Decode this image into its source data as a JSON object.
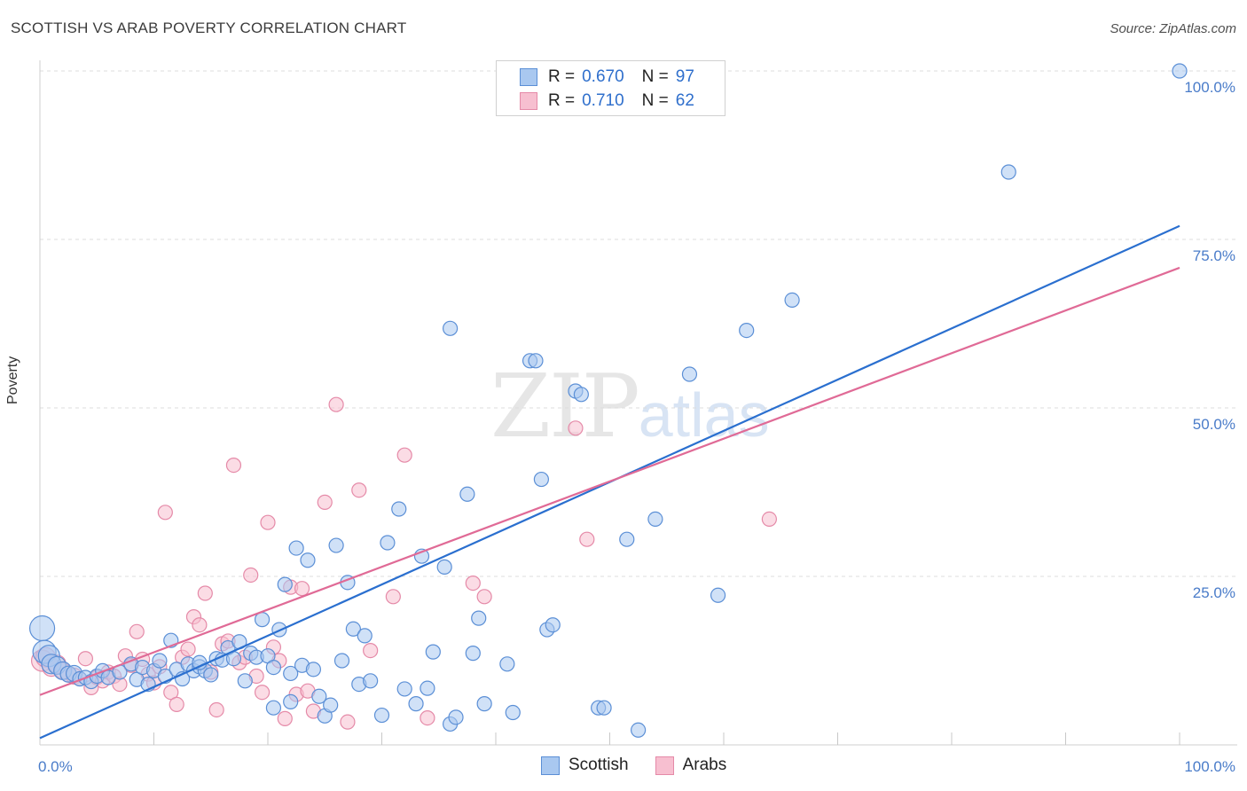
{
  "title": "SCOTTISH VS ARAB POVERTY CORRELATION CHART",
  "source": "Source: ZipAtlas.com",
  "watermark": {
    "zip": "ZIP",
    "atlas": "atlas"
  },
  "legend": {
    "rows": [
      {
        "r_label": "R =",
        "r_value": "0.670",
        "n_label": "N =",
        "n_value": "97"
      },
      {
        "r_label": "R =",
        "r_value": "0.710",
        "n_label": "N =",
        "n_value": "62"
      }
    ]
  },
  "colors": {
    "scottish_fill": "#a9c8f0",
    "scottish_stroke": "#5b8fd6",
    "scottish_line": "#2a6fcf",
    "arabs_fill": "#f7bfd0",
    "arabs_stroke": "#e58aa8",
    "arabs_line": "#e06a96"
  },
  "chart_data": {
    "type": "scatter",
    "title": "SCOTTISH VS ARAB POVERTY CORRELATION CHART",
    "xlabel": "",
    "ylabel": "Poverty",
    "xlim": [
      0,
      100
    ],
    "ylim": [
      0,
      100
    ],
    "x_tick_labels": [
      "0.0%",
      "100.0%"
    ],
    "y_tick_labels": [
      "25.0%",
      "50.0%",
      "75.0%",
      "100.0%"
    ],
    "y_ticks": [
      25,
      50,
      75,
      100
    ],
    "x_minor_ticks": [
      10,
      20,
      30,
      40,
      50,
      60,
      70,
      80,
      90,
      100
    ],
    "series": [
      {
        "name": "Scottish",
        "r": 0.67,
        "n": 97,
        "trend": {
          "x": [
            0,
            100
          ],
          "y": [
            1.0,
            77.0
          ]
        },
        "points": [
          [
            0.2,
            17.3,
            14
          ],
          [
            0.4,
            13.8,
            13
          ],
          [
            0.8,
            13.2,
            12
          ],
          [
            1.0,
            12.0,
            11
          ],
          [
            1.5,
            11.8,
            10
          ],
          [
            2.0,
            11.0,
            10
          ],
          [
            2.5,
            10.5,
            9
          ],
          [
            3.0,
            10.6,
            9
          ],
          [
            3.5,
            9.8,
            8
          ],
          [
            4.0,
            10.0,
            8
          ],
          [
            4.5,
            9.4,
            8
          ],
          [
            5.0,
            10.2,
            8
          ],
          [
            5.5,
            11.0,
            8
          ],
          [
            6.0,
            10.0,
            8
          ],
          [
            7.0,
            10.8,
            8
          ],
          [
            8.0,
            12.0,
            8
          ],
          [
            8.5,
            9.7,
            8
          ],
          [
            9.0,
            11.5,
            8
          ],
          [
            9.5,
            9.0,
            8
          ],
          [
            10.0,
            11.0,
            8
          ],
          [
            10.5,
            12.5,
            8
          ],
          [
            11.0,
            10.2,
            8
          ],
          [
            11.5,
            15.5,
            8
          ],
          [
            12.0,
            11.2,
            8
          ],
          [
            12.5,
            9.8,
            8
          ],
          [
            13.0,
            12.0,
            8
          ],
          [
            13.5,
            11.0,
            8
          ],
          [
            14.0,
            11.6,
            8
          ],
          [
            14.5,
            11.0,
            8
          ],
          [
            15.0,
            10.4,
            8
          ],
          [
            15.5,
            12.8,
            8
          ],
          [
            16.0,
            12.6,
            8
          ],
          [
            16.5,
            14.4,
            8
          ],
          [
            17.0,
            12.8,
            8
          ],
          [
            17.5,
            15.3,
            8
          ],
          [
            18.0,
            9.5,
            8
          ],
          [
            18.5,
            13.6,
            8
          ],
          [
            19.0,
            13.0,
            8
          ],
          [
            19.5,
            18.6,
            8
          ],
          [
            20.0,
            13.2,
            8
          ],
          [
            20.5,
            5.5,
            8
          ],
          [
            21.0,
            17.1,
            8
          ],
          [
            21.5,
            23.8,
            8
          ],
          [
            22.0,
            10.6,
            8
          ],
          [
            22.5,
            29.2,
            8
          ],
          [
            23.0,
            11.8,
            8
          ],
          [
            23.5,
            27.4,
            8
          ],
          [
            24.0,
            11.2,
            8
          ],
          [
            24.5,
            7.2,
            8
          ],
          [
            25.0,
            4.3,
            8
          ],
          [
            25.5,
            5.9,
            8
          ],
          [
            26.0,
            29.6,
            8
          ],
          [
            27.0,
            24.1,
            8
          ],
          [
            27.5,
            17.2,
            8
          ],
          [
            28.0,
            9.0,
            8
          ],
          [
            28.5,
            16.2,
            8
          ],
          [
            29.0,
            9.5,
            8
          ],
          [
            30.0,
            4.4,
            8
          ],
          [
            30.5,
            30.0,
            8
          ],
          [
            31.5,
            35.0,
            8
          ],
          [
            32.0,
            8.3,
            8
          ],
          [
            33.0,
            6.1,
            8
          ],
          [
            33.5,
            28.0,
            8
          ],
          [
            34.0,
            8.4,
            8
          ],
          [
            34.5,
            13.8,
            8
          ],
          [
            35.5,
            26.4,
            8
          ],
          [
            36.0,
            3.1,
            8
          ],
          [
            36.5,
            4.1,
            8
          ],
          [
            37.5,
            37.2,
            8
          ],
          [
            38.0,
            13.6,
            8
          ],
          [
            38.5,
            18.8,
            8
          ],
          [
            39.0,
            6.1,
            8
          ],
          [
            41.0,
            12.0,
            8
          ],
          [
            41.5,
            4.8,
            8
          ],
          [
            44.0,
            39.4,
            8
          ],
          [
            44.5,
            17.1,
            8
          ],
          [
            45.0,
            17.8,
            8
          ],
          [
            47.0,
            52.5,
            8
          ],
          [
            47.5,
            52.0,
            8
          ],
          [
            49.0,
            5.5,
            8
          ],
          [
            49.5,
            5.5,
            8
          ],
          [
            51.5,
            30.5,
            8
          ],
          [
            52.5,
            2.2,
            8
          ],
          [
            54.0,
            33.5,
            8
          ],
          [
            57.0,
            55.0,
            8
          ],
          [
            59.5,
            22.2,
            8
          ],
          [
            62.0,
            61.5,
            8
          ],
          [
            66.0,
            66.0,
            8
          ],
          [
            85.0,
            85.0,
            8
          ],
          [
            100.0,
            100.0,
            8
          ],
          [
            36.0,
            61.8,
            8
          ],
          [
            43.0,
            57.0,
            8
          ],
          [
            43.5,
            57.0,
            8
          ],
          [
            22.0,
            6.4,
            8
          ],
          [
            20.5,
            11.5,
            8
          ],
          [
            26.5,
            12.5,
            8
          ],
          [
            14.0,
            12.2,
            8
          ]
        ]
      },
      {
        "name": "Arabs",
        "r": 0.71,
        "n": 62,
        "trend": {
          "x": [
            0,
            100
          ],
          "y": [
            7.4,
            70.8
          ]
        },
        "points": [
          [
            0.2,
            12.5,
            12
          ],
          [
            0.5,
            13.0,
            11
          ],
          [
            1.0,
            11.5,
            10
          ],
          [
            1.5,
            12.0,
            10
          ],
          [
            2.0,
            11.0,
            9
          ],
          [
            2.5,
            10.5,
            9
          ],
          [
            3.0,
            10.2,
            9
          ],
          [
            3.5,
            9.8,
            8
          ],
          [
            4.0,
            12.8,
            8
          ],
          [
            4.5,
            8.5,
            8
          ],
          [
            5.0,
            10.0,
            8
          ],
          [
            5.5,
            9.5,
            8
          ],
          [
            6.0,
            10.8,
            8
          ],
          [
            6.5,
            10.2,
            8
          ],
          [
            7.0,
            9.0,
            8
          ],
          [
            7.5,
            13.2,
            8
          ],
          [
            8.0,
            11.8,
            8
          ],
          [
            8.5,
            16.8,
            8
          ],
          [
            9.0,
            12.7,
            8
          ],
          [
            9.5,
            10.5,
            8
          ],
          [
            10.0,
            9.2,
            8
          ],
          [
            10.5,
            11.6,
            8
          ],
          [
            11.0,
            34.5,
            8
          ],
          [
            11.5,
            7.8,
            8
          ],
          [
            12.0,
            6.0,
            8
          ],
          [
            12.5,
            13.0,
            8
          ],
          [
            13.0,
            14.2,
            8
          ],
          [
            13.5,
            19.0,
            8
          ],
          [
            14.0,
            17.8,
            8
          ],
          [
            14.5,
            22.5,
            8
          ],
          [
            15.0,
            10.8,
            8
          ],
          [
            15.5,
            5.2,
            8
          ],
          [
            16.0,
            15.0,
            8
          ],
          [
            16.5,
            15.4,
            8
          ],
          [
            17.0,
            41.5,
            8
          ],
          [
            17.5,
            12.2,
            8
          ],
          [
            18.0,
            13.0,
            8
          ],
          [
            18.5,
            25.2,
            8
          ],
          [
            19.0,
            10.2,
            8
          ],
          [
            19.5,
            7.8,
            8
          ],
          [
            20.0,
            33.0,
            8
          ],
          [
            20.5,
            14.5,
            8
          ],
          [
            21.0,
            12.5,
            8
          ],
          [
            21.5,
            3.9,
            8
          ],
          [
            22.0,
            23.4,
            8
          ],
          [
            22.5,
            7.5,
            8
          ],
          [
            23.0,
            23.2,
            8
          ],
          [
            23.5,
            8.0,
            8
          ],
          [
            24.0,
            5.0,
            8
          ],
          [
            25.0,
            36.0,
            8
          ],
          [
            26.0,
            50.5,
            8
          ],
          [
            27.0,
            3.4,
            8
          ],
          [
            28.0,
            37.8,
            8
          ],
          [
            29.0,
            14.0,
            8
          ],
          [
            31.0,
            22.0,
            8
          ],
          [
            32.0,
            43.0,
            8
          ],
          [
            34.0,
            4.0,
            8
          ],
          [
            38.0,
            24.0,
            8
          ],
          [
            39.0,
            22.0,
            8
          ],
          [
            47.0,
            47.0,
            8
          ],
          [
            48.0,
            30.5,
            8
          ],
          [
            64.0,
            33.5,
            8
          ]
        ]
      }
    ]
  },
  "bottom_legend": {
    "items": [
      "Scottish",
      "Arabs"
    ]
  }
}
